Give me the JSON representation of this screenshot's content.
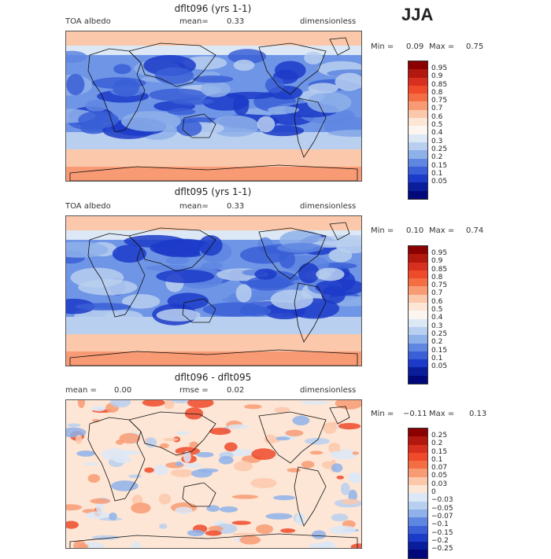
{
  "season": "JJA",
  "panels": [
    {
      "title": "dflt096 (yrs 1-1)",
      "left_label": "TOA albedo",
      "mean_label": "mean=",
      "mean_value": "0.33",
      "units": "dimensionless",
      "min_label": "Min =",
      "min_value": "0.09",
      "max_label": "Max =",
      "max_value": "0.75"
    },
    {
      "title": "dflt095 (yrs 1-1)",
      "left_label": "TOA albedo",
      "mean_label": "mean=",
      "mean_value": "0.33",
      "units": "dimensionless",
      "min_label": "Min =",
      "min_value": "0.10",
      "max_label": "Max =",
      "max_value": "0.74"
    },
    {
      "title": "dflt096 - dflt095",
      "left_label": "mean =",
      "left_value": "0.00",
      "rmse_label": "rmse =",
      "rmse_value": "0.02",
      "units": "dimensionless",
      "min_label": "Min =",
      "min_value": "−0.11",
      "max_label": "Max =",
      "max_value": "0.13"
    }
  ],
  "colorbars": {
    "albedo": {
      "labels": [
        "0.95",
        "0.9",
        "0.85",
        "0.8",
        "0.75",
        "0.7",
        "0.6",
        "0.5",
        "0.4",
        "0.3",
        "0.25",
        "0.2",
        "0.15",
        "0.1",
        "0.05"
      ],
      "colors": [
        "#8b0000",
        "#b2180e",
        "#d7301f",
        "#ef4a2a",
        "#f46d43",
        "#f89b74",
        "#fbc8ab",
        "#fde6d6",
        "#fdf5ef",
        "#dce8f6",
        "#b9cfef",
        "#8fb1ea",
        "#5f86e0",
        "#3a5fd6",
        "#1c3bc8",
        "#0a1e9c",
        "#00087a"
      ]
    },
    "difference": {
      "labels": [
        "0.25",
        "0.2",
        "0.15",
        "0.1",
        "0.07",
        "0.05",
        "0.03",
        "0",
        "−0.03",
        "−0.05",
        "−0.07",
        "−0.1",
        "−0.15",
        "−0.2",
        "−0.25"
      ],
      "colors": [
        "#8b0000",
        "#b2180e",
        "#d7301f",
        "#ef4a2a",
        "#f46d43",
        "#f89b74",
        "#fbc8ab",
        "#fde6d6",
        "#dce8f6",
        "#b9cfef",
        "#8fb1ea",
        "#5f86e0",
        "#3a5fd6",
        "#1c3bc8",
        "#0a1e9c",
        "#00087a"
      ]
    }
  },
  "chart_data": [
    {
      "type": "heatmap",
      "title": "dflt096 (yrs 1-1)",
      "variable": "TOA albedo",
      "season": "JJA",
      "mean": 0.33,
      "min": 0.09,
      "max": 0.75,
      "units": "dimensionless",
      "colorbar_levels": [
        0.05,
        0.1,
        0.15,
        0.2,
        0.25,
        0.3,
        0.4,
        0.5,
        0.6,
        0.7,
        0.75,
        0.8,
        0.85,
        0.9,
        0.95
      ]
    },
    {
      "type": "heatmap",
      "title": "dflt095 (yrs 1-1)",
      "variable": "TOA albedo",
      "season": "JJA",
      "mean": 0.33,
      "min": 0.1,
      "max": 0.74,
      "units": "dimensionless",
      "colorbar_levels": [
        0.05,
        0.1,
        0.15,
        0.2,
        0.25,
        0.3,
        0.4,
        0.5,
        0.6,
        0.7,
        0.75,
        0.8,
        0.85,
        0.9,
        0.95
      ]
    },
    {
      "type": "heatmap",
      "title": "dflt096 - dflt095",
      "season": "JJA",
      "mean": 0.0,
      "rmse": 0.02,
      "min": -0.11,
      "max": 0.13,
      "units": "dimensionless",
      "colorbar_levels": [
        -0.25,
        -0.2,
        -0.15,
        -0.1,
        -0.07,
        -0.05,
        -0.03,
        0,
        0.03,
        0.05,
        0.07,
        0.1,
        0.15,
        0.2,
        0.25
      ]
    }
  ]
}
